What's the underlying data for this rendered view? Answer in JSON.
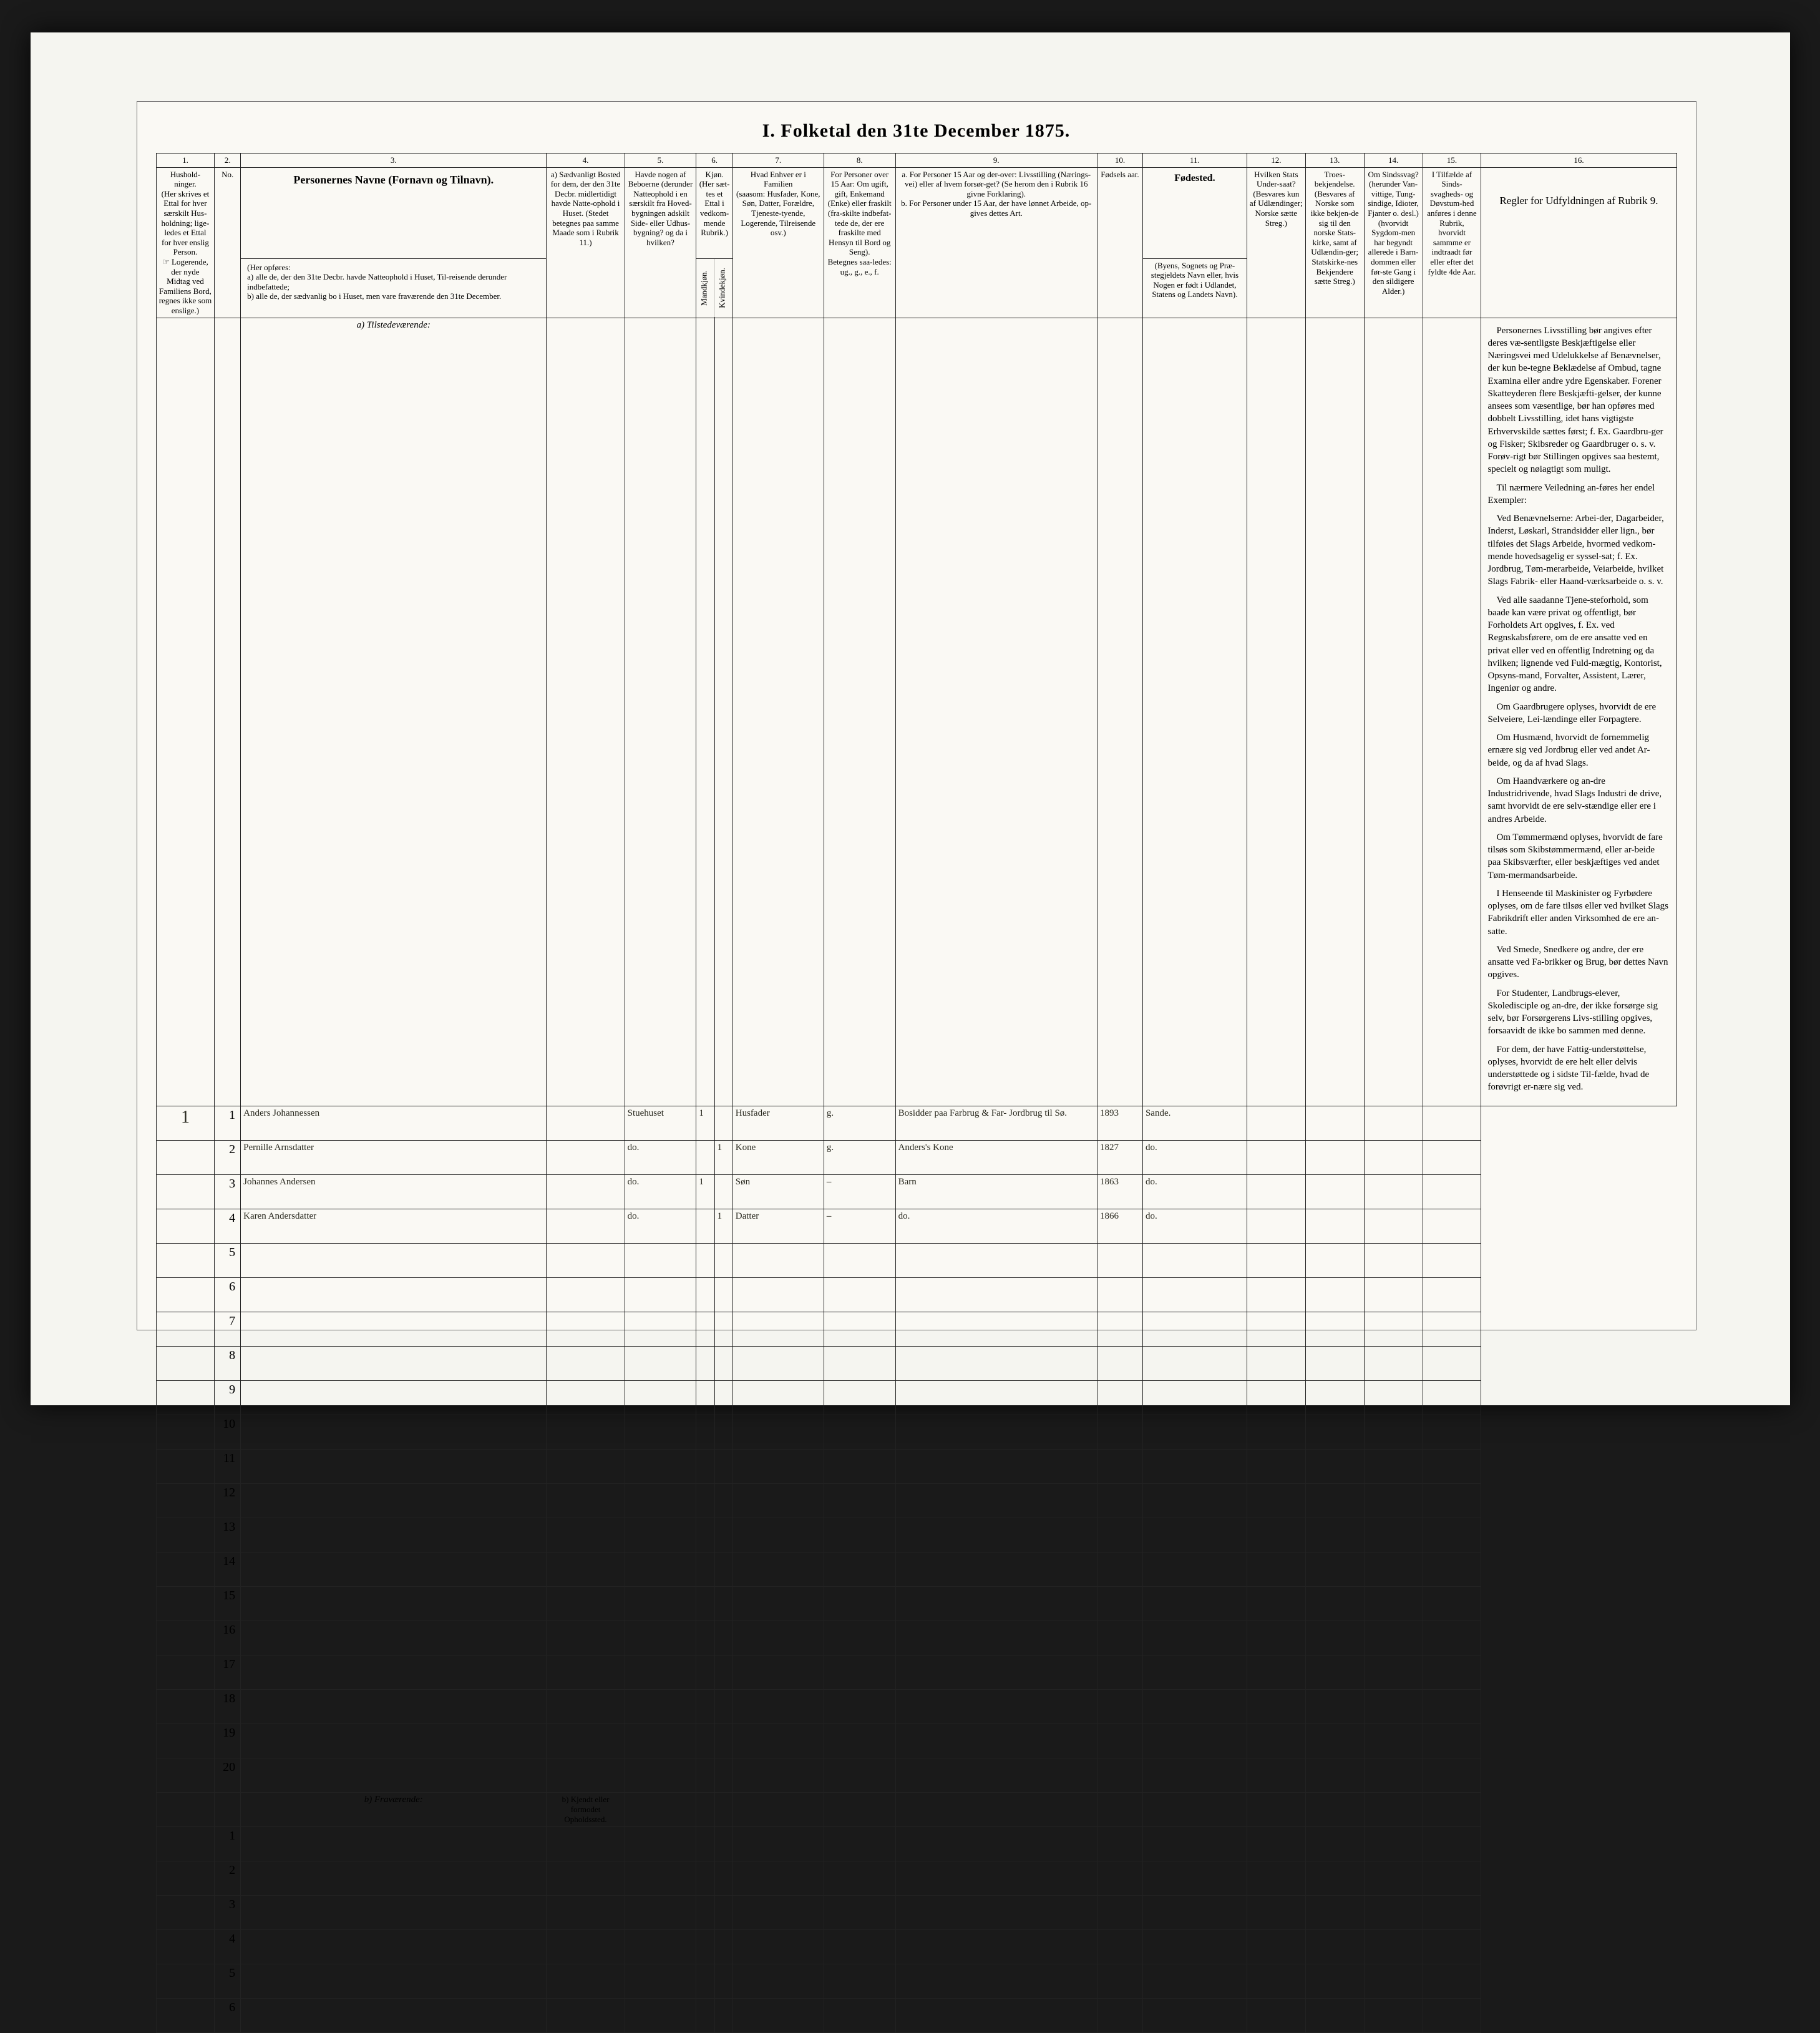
{
  "title": "I.  Folketal den 31te December 1875.",
  "columns": {
    "numbers": [
      "1.",
      "2.",
      "3.",
      "4.",
      "5.",
      "6.",
      "7.",
      "8.",
      "9.",
      "10.",
      "11.",
      "12.",
      "13.",
      "14.",
      "15.",
      "16."
    ],
    "c1": "Hushold-\nninger.\n(Her skrives et Ettal for hver særskilt Hus-holdning; lige-ledes et Ettal for hver enslig Person.\n☞ Logerende, der nyde Midtag ved Familiens Bord, regnes ikke som enslige.)",
    "c2": "No.",
    "c3_title": "Personernes Navne (Fornavn og Tilnavn).",
    "c3_sub": "(Her opføres:\na) alle de, der den 31te Decbr. havde Natteophold i Huset, Til-reisende derunder indbefattede;\nb) alle de, der sædvanlig bo i Huset, men vare fraværende den 31te December.",
    "c4": "a) Sædvanligt Bosted for dem, der den 31te Decbr. midlertidigt havde Natte-ophold i Huset. (Stedet betegnes paa samme Maade som i Rubrik 11.)",
    "c5": "Havde nogen af Beboerne (derunder Natteophold i en særskilt fra Hoved-bygningen adskilt Side- eller Udhus-bygning? og da i hvilken?",
    "c6_title": "Kjøn.\n(Her sæt-tes et Ettal i vedkom-mende Rubrik.)",
    "c6a": "Mandkjøn.",
    "c6b": "Kvindekjøn.",
    "c7": "Hvad Enhver er i Familien\n(saasom: Husfader, Kone, Søn, Datter, Forældre, Tjeneste-tyende, Logerende, Tilreisende osv.)",
    "c8": "For Personer over 15 Aar: Om ugift, gift, Enkemand (Enke) eller fraskilt (fra-skilte indbefat-tede de, der ere fraskilte med Hensyn til Bord og Seng).\nBetegnes saa-ledes: ug., g., e., f.",
    "c9": "a. For Personer 15 Aar og der-over: Livsstilling (Nærings-vei) eller af hvem forsør-get? (Se herom den i Rubrik 16 givne Forklaring).\nb. For Personer under 15 Aar, der have lønnet Arbeide, op-gives dettes Art.",
    "c10": "Fødsels aar.",
    "c11_title": "Fødested.",
    "c11_sub": "(Byens, Sognets og Præ-stegjeldets Navn eller, hvis Nogen er født i Udlandet, Statens og Landets Navn).",
    "c12": "Hvilken Stats Under-saat?\n(Besvares kun af Udlændinger; Norske sætte Streg.)",
    "c13": "Troes-bekjendelse.\n(Besvares af Norske som ikke bekjen-de sig til den norske Stats-kirke, samt af Udlændin-ger; Statskirke-nes Bekjendere sætte Streg.)",
    "c14": "Om Sindssvag? (herunder Van-vittige, Tung-sindige, Idioter, Fjanter o. desl.) (hvorvidt Sygdom-men har begyndt allerede i Barn-dommen eller før-ste Gang i den sildigere Alder.)",
    "c15": "I Tilfælde af Sinds-svagheds- og Døvstum-hed anføres i denne Rubrik, hvorvidt sammme er indtraadt før eller efter det fyldte 4de Aar.",
    "c16_title": "Regler for Udfyldningen af Rubrik 9."
  },
  "section_a": "a) Tilstedeværende:",
  "section_b": "b) Fraværende:",
  "section_b_col4": "b) Kjendt eller formodet Opholdssted.",
  "rows_a": [
    {
      "hh": "1",
      "no": "1",
      "name": "Anders Johannessen",
      "c4": "",
      "c5": "Stuehuset",
      "m": "1",
      "k": "",
      "fam": "Husfader",
      "civ": "g.",
      "occ": "Bosidder paa Farbrug & Far-\nJordbrug til Sø.",
      "yr": "1893",
      "place": "Sande.",
      "c12": "",
      "c13": "",
      "c14": "",
      "c15": ""
    },
    {
      "hh": "",
      "no": "2",
      "name": "Pernille Arnsdatter",
      "c4": "",
      "c5": "do.",
      "m": "",
      "k": "1",
      "fam": "Kone",
      "civ": "g.",
      "occ": "Anders's Kone",
      "yr": "1827",
      "place": "do.",
      "c12": "",
      "c13": "",
      "c14": "",
      "c15": ""
    },
    {
      "hh": "",
      "no": "3",
      "name": "Johannes Andersen",
      "c4": "",
      "c5": "do.",
      "m": "1",
      "k": "",
      "fam": "Søn",
      "civ": "–",
      "occ": "Barn",
      "yr": "1863",
      "place": "do.",
      "c12": "",
      "c13": "",
      "c14": "",
      "c15": ""
    },
    {
      "hh": "",
      "no": "4",
      "name": "Karen Andersdatter",
      "c4": "",
      "c5": "do.",
      "m": "",
      "k": "1",
      "fam": "Datter",
      "civ": "–",
      "occ": "do.",
      "yr": "1866",
      "place": "do.",
      "c12": "",
      "c13": "",
      "c14": "",
      "c15": ""
    }
  ],
  "blank_a_from": 5,
  "blank_a_to": 20,
  "blank_b_from": 1,
  "blank_b_to": 6,
  "rules_paragraphs": [
    "Personernes Livsstilling bør angives efter deres væ-sentligste Beskjæftigelse eller Næringsvei med Udelukkelse af Benævnelser, der kun be-tegne Beklædelse af Ombud, tagne Examina eller andre ydre Egenskaber. Forener Skatteyderen flere Beskjæfti-gelser, der kunne ansees som væsentlige, bør han opføres med dobbelt Livsstilling, idet hans vigtigste Erhvervskilde sættes først; f. Ex. Gaardbru-ger og Fisker; Skibsreder og Gaardbruger o. s. v. Forøv-rigt bør Stillingen opgives saa bestemt, specielt og nøiagtigt som muligt.",
    "Til nærmere Veiledning an-føres her endel Exempler:",
    "Ved Benævnelserne: Arbei-der, Dagarbeider, Inderst, Løskarl, Strandsidder eller lign., bør tilføies det Slags Arbeide, hvormed vedkom-mende hovedsagelig er syssel-sat; f. Ex. Jordbrug, Tøm-merarbeide, Veiarbeide, hvilket Slags Fabrik- eller Haand-værksarbeide o. s. v.",
    "Ved alle saadanne Tjene-steforhold, som baade kan være privat og offentligt, bør Forholdets Art opgives, f. Ex. ved Regnskabsførere, om de ere ansatte ved en privat eller ved en offentlig Indretning og da hvilken; lignende ved Fuld-mægtig, Kontorist, Opsyns-mand, Forvalter, Assistent, Lærer, Ingeniør og andre.",
    "Om Gaardbrugere oplyses, hvorvidt de ere Selveiere, Lei-lændinge eller Forpagtere.",
    "Om Husmænd, hvorvidt de fornemmelig ernære sig ved Jordbrug eller ved andet Ar-beide, og da af hvad Slags.",
    "Om Haandværkere og an-dre Industridrivende, hvad Slags Industri de drive, samt hvorvidt de ere selv-stændige eller ere i andres Arbeide.",
    "Om Tømmermænd oplyses, hvorvidt de fare tilsøs som Skibstømmermænd, eller ar-beide paa Skibsværfter, eller beskjæftiges ved andet Tøm-mermandsarbeide.",
    "I Henseende til Maskinister og Fyrbødere oplyses, om de fare tilsøs eller ved hvilket Slags Fabrikdrift eller anden Virksomhed de ere an-satte.",
    "Ved Smede, Snedkere og andre, der ere ansatte ved Fa-brikker og Brug, bør dettes Navn opgives.",
    "For Studenter, Landbrugs-elever, Skoledisciple og an-dre, der ikke forsørge sig selv, bør Forsørgerens Livs-stilling opgives, forsaavidt de ikke bo sammen med denne.",
    "For dem, der have Fattig-understøttelse, oplyses, hvorvidt de ere helt eller delvis understøttede og i sidste Til-fælde, hvad de forøvrigt er-nære sig ved."
  ],
  "colors": {
    "paper": "#faf9f4",
    "frame": "#f5f5f0",
    "outer": "#1a1a1a",
    "ink": "#2a2a20",
    "line": "#222222"
  }
}
